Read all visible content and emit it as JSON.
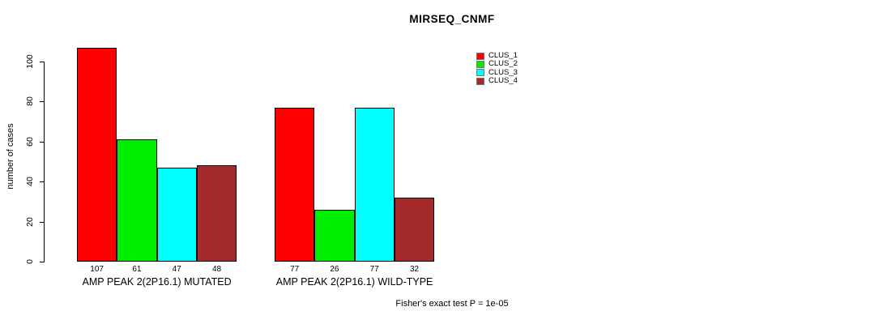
{
  "chart_data": {
    "type": "bar",
    "title": "MIRSEQ_CNMF",
    "ylabel": "number of cases",
    "ylim": [
      0,
      110
    ],
    "yticks": [
      0,
      20,
      40,
      60,
      80,
      100
    ],
    "grid": false,
    "legend_position": "top-right",
    "series": [
      {
        "name": "CLUS_1",
        "color": "#FF0000"
      },
      {
        "name": "CLUS_2",
        "color": "#00EE00"
      },
      {
        "name": "CLUS_3",
        "color": "#00FFFF"
      },
      {
        "name": "CLUS_4",
        "color": "#A52A2A"
      }
    ],
    "groups": [
      {
        "label": "AMP PEAK 2(2P16.1) MUTATED",
        "values": [
          107,
          61,
          47,
          48
        ]
      },
      {
        "label": "AMP PEAK 2(2P16.1) WILD-TYPE",
        "values": [
          77,
          26,
          77,
          32
        ]
      }
    ],
    "footnote": "Fisher's exact test P = 1e-05"
  }
}
